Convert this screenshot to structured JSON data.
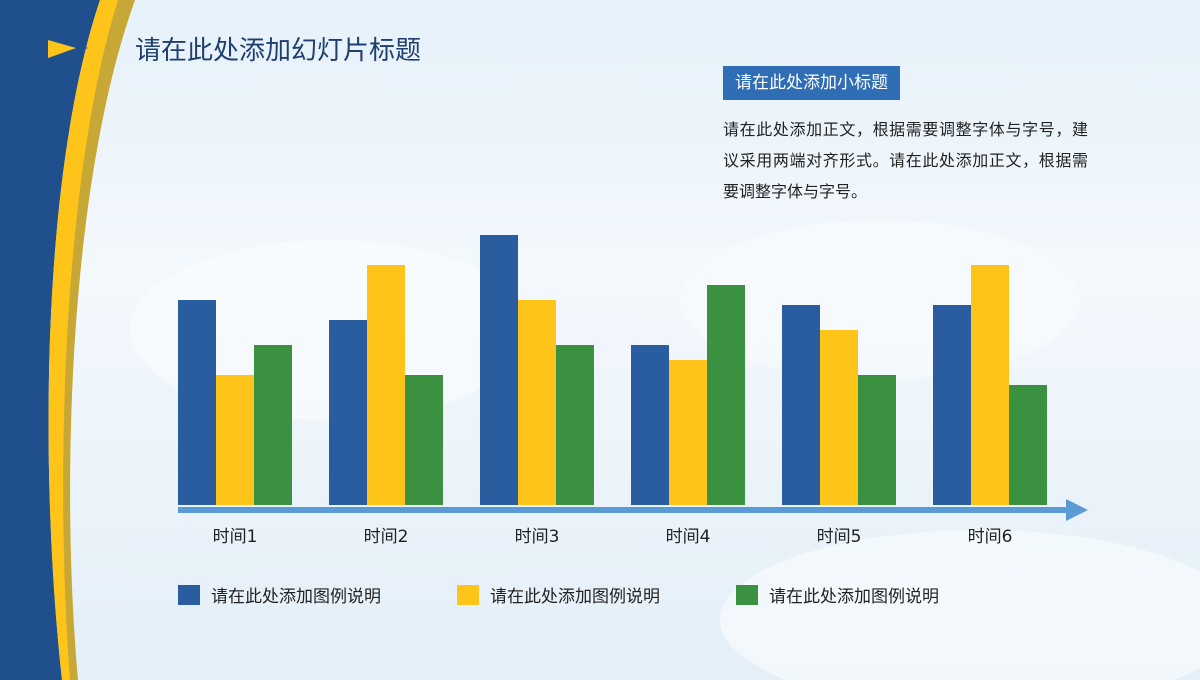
{
  "header": {
    "title": "请在此处添加幻灯片标题"
  },
  "info": {
    "subtitle": "请在此处添加小标题",
    "body": "请在此处添加正文，根据需要调整字体与字号，建议采用两端对齐形式。请在此处添加正文，根据需要调整字体与字号。"
  },
  "chart_data": {
    "type": "bar",
    "categories": [
      "时间1",
      "时间2",
      "时间3",
      "时间4",
      "时间5",
      "时间6"
    ],
    "series": [
      {
        "name": "请在此处添加图例说明",
        "color": "#2a5d9f",
        "values": [
          4.1,
          3.7,
          5.4,
          3.2,
          4.0,
          4.0
        ]
      },
      {
        "name": "请在此处添加图例说明",
        "color": "#ffc41a",
        "values": [
          2.6,
          4.8,
          4.1,
          2.9,
          3.5,
          4.8
        ]
      },
      {
        "name": "请在此处添加图例说明",
        "color": "#3a9140",
        "values": [
          3.2,
          2.6,
          3.2,
          4.4,
          2.6,
          2.4
        ]
      }
    ],
    "ylim": [
      0,
      6
    ]
  }
}
